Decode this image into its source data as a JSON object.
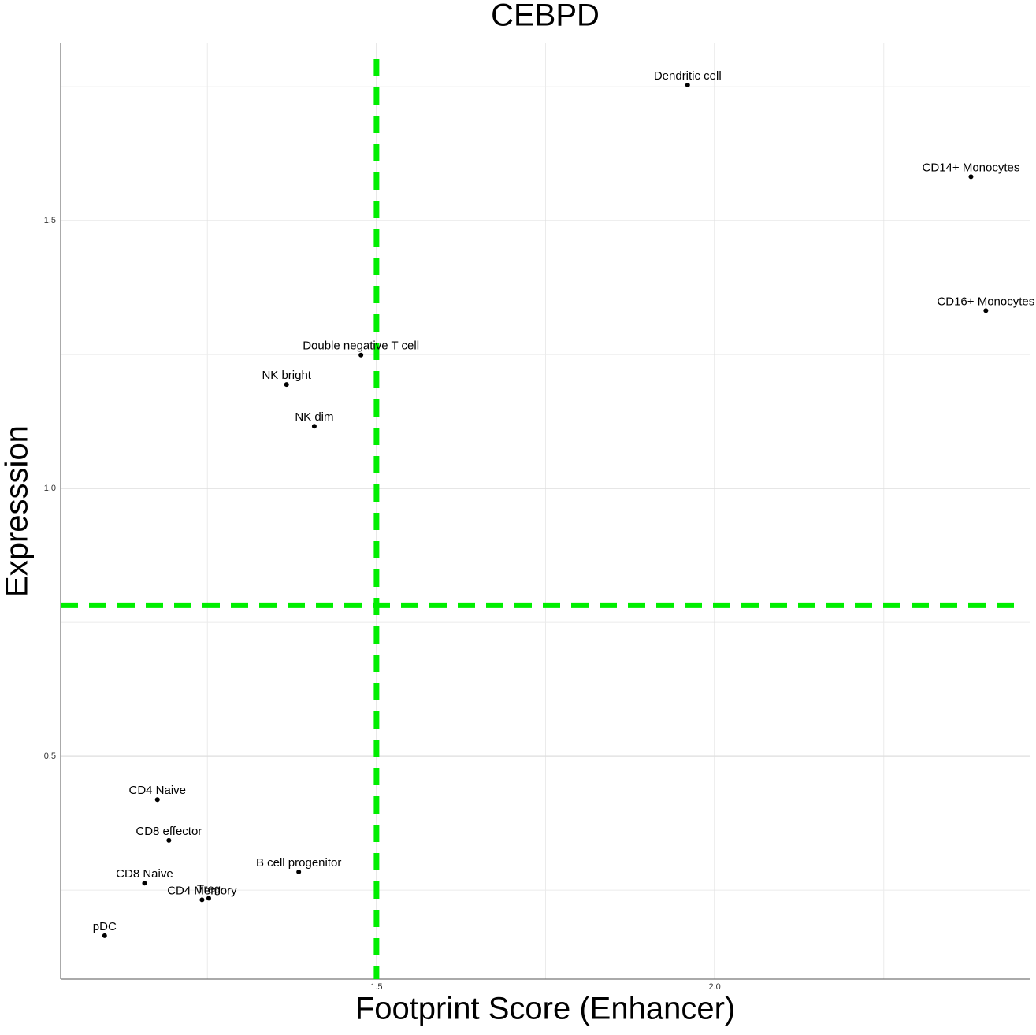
{
  "chart_data": {
    "type": "scatter",
    "title": "CEBPD",
    "x_label": "Footprint Score (Enhancer)",
    "y_label": "Expresssion",
    "labels": [
      "Dendritic cell",
      "CD14+ Monocytes",
      "CD16+ Monocytes",
      "Double negative T cell",
      "NK bright",
      "NK dim",
      "CD4 Naive",
      "CD8 effector",
      "B cell progenitor",
      "CD8 Naive",
      "CD4 Memory",
      "Treg",
      "pDC"
    ],
    "x": [
      1.96,
      2.379,
      2.401,
      1.477,
      1.367,
      1.408,
      1.176,
      1.193,
      1.385,
      1.157,
      1.242,
      1.252,
      1.098
    ],
    "y": [
      1.753,
      1.582,
      1.332,
      1.249,
      1.194,
      1.116,
      0.419,
      0.343,
      0.284,
      0.263,
      0.232,
      0.235,
      0.165
    ],
    "color": "#000000",
    "xlim": [
      1.033,
      2.467
    ],
    "ylim": [
      0.084,
      1.831
    ],
    "xticks": [
      1.5,
      {
        "value": 2,
        "label": "2.0"
      }
    ],
    "yticks": [
      0.5,
      {
        "value": 1,
        "label": "1.0"
      },
      1.5
    ],
    "x_minor_grid": [
      1.25,
      1.75,
      2.25
    ],
    "y_minor_grid": [
      0.25,
      0.75,
      1.25,
      1.75
    ],
    "grid": true,
    "threshold_x": 1.5,
    "threshold_y": 0.782,
    "threshold_color": "#00ee00"
  }
}
